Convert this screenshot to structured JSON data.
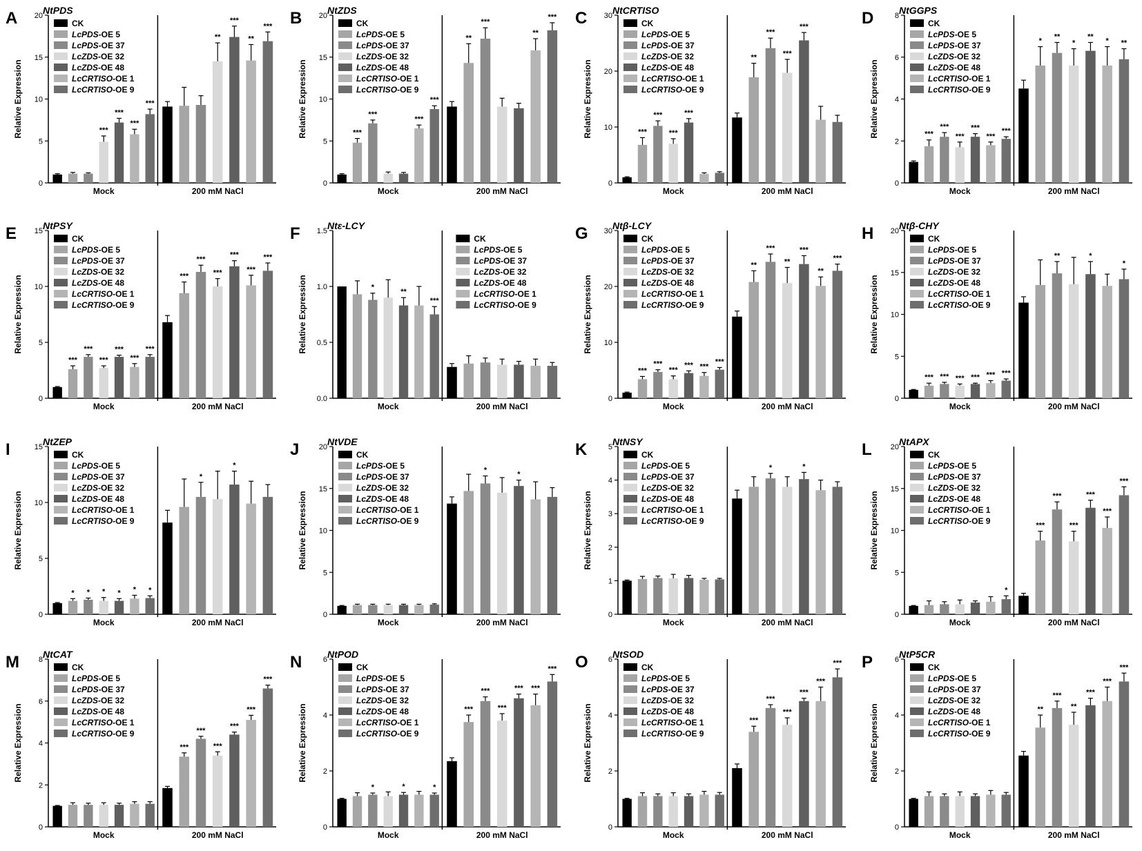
{
  "figure": {
    "group_labels": [
      "Mock",
      "200 mM NaCl"
    ],
    "ylabel": "Relative Expression",
    "legend": [
      {
        "name": "CK",
        "italic": "",
        "suffix": ""
      },
      {
        "name": "LcPDS-OE 5",
        "italic": "LcPDS",
        "suffix": "-OE 5"
      },
      {
        "name": "LcPDS-OE 37",
        "italic": "LcPDS",
        "suffix": "-OE 37"
      },
      {
        "name": "LcZDS-OE 32",
        "italic": "LcZDS",
        "suffix": "-OE 32"
      },
      {
        "name": "LcZDS-OE 48",
        "italic": "LcZDS",
        "suffix": "-OE 48"
      },
      {
        "name": "LcCRTISO-OE 1",
        "italic": "LcCRTISO",
        "suffix": "-OE 1"
      },
      {
        "name": "LcCRTISO-OE 9",
        "italic": "LcCRTISO",
        "suffix": "-OE 9"
      }
    ],
    "colors": [
      "#000000",
      "#a6a6a6",
      "#8a8a8a",
      "#d9d9d9",
      "#5f5f5f",
      "#b5b5b5",
      "#6e6e6e"
    ]
  },
  "chart_data": [
    {
      "letter": "A",
      "title": "NtPDS",
      "type": "bar",
      "ylim": [
        0,
        20
      ],
      "yticks": [
        0,
        5,
        10,
        15,
        20
      ],
      "series_values": {
        "mock": [
          1,
          1.1,
          1.1,
          4.9,
          7.2,
          5.8,
          8.2
        ],
        "salt": [
          9.1,
          9.2,
          9.3,
          14.5,
          17.4,
          14.6,
          16.9
        ]
      },
      "errors": {
        "mock": [
          0.1,
          0.15,
          0.1,
          0.7,
          0.5,
          0.6,
          0.6
        ],
        "salt": [
          0.6,
          2.2,
          1.1,
          2.2,
          1.3,
          1.9,
          1.1
        ]
      },
      "stars": {
        "mock": [
          "",
          "",
          "",
          "***",
          "***",
          "***",
          "***"
        ],
        "salt": [
          "",
          "",
          "",
          "**",
          "***",
          "**",
          "***"
        ]
      }
    },
    {
      "letter": "B",
      "title": "NtZDS",
      "type": "bar",
      "ylim": [
        0,
        20
      ],
      "yticks": [
        0,
        5,
        10,
        15,
        20
      ],
      "series_values": {
        "mock": [
          1,
          4.8,
          7.1,
          1.1,
          1.1,
          6.5,
          8.8
        ],
        "salt": [
          9.1,
          14.3,
          17.2,
          9.1,
          8.9,
          15.8,
          18.2
        ]
      },
      "errors": {
        "mock": [
          0.1,
          0.5,
          0.4,
          0.2,
          0.15,
          0.4,
          0.4
        ],
        "salt": [
          0.6,
          2.3,
          1.3,
          1.0,
          0.6,
          1.4,
          0.9
        ]
      },
      "stars": {
        "mock": [
          "",
          "***",
          "***",
          "",
          "",
          "***",
          "***"
        ],
        "salt": [
          "",
          "**",
          "***",
          "",
          "",
          "**",
          "***"
        ]
      }
    },
    {
      "letter": "C",
      "title": "NtCRTISO",
      "type": "bar",
      "ylim": [
        0,
        30
      ],
      "yticks": [
        0,
        10,
        20,
        30
      ],
      "series_values": {
        "mock": [
          1,
          6.8,
          10.2,
          7.0,
          10.8,
          1.6,
          1.8
        ],
        "salt": [
          11.7,
          18.9,
          24.1,
          19.7,
          25.5,
          11.3,
          10.9
        ]
      },
      "errors": {
        "mock": [
          0.1,
          1.3,
          0.9,
          0.9,
          0.7,
          0.2,
          0.2
        ],
        "salt": [
          0.8,
          2.5,
          1.8,
          2.4,
          1.4,
          2.4,
          1.2
        ]
      },
      "stars": {
        "mock": [
          "",
          "***",
          "***",
          "***",
          "***",
          "",
          ""
        ],
        "salt": [
          "",
          "**",
          "***",
          "***",
          "***",
          "",
          ""
        ]
      }
    },
    {
      "letter": "D",
      "title": "NtGGPS",
      "type": "bar",
      "ylim": [
        0,
        8
      ],
      "yticks": [
        0,
        2,
        4,
        6,
        8
      ],
      "series_values": {
        "mock": [
          1,
          1.75,
          2.2,
          1.7,
          2.2,
          1.8,
          2.1
        ],
        "salt": [
          4.5,
          5.6,
          6.2,
          5.6,
          6.3,
          5.6,
          5.9
        ]
      },
      "errors": {
        "mock": [
          0.05,
          0.3,
          0.2,
          0.25,
          0.15,
          0.15,
          0.1
        ],
        "salt": [
          0.4,
          0.9,
          0.5,
          0.8,
          0.4,
          0.9,
          0.5
        ]
      },
      "stars": {
        "mock": [
          "",
          "***",
          "***",
          "***",
          "***",
          "***",
          "***"
        ],
        "salt": [
          "",
          "*",
          "**",
          "*",
          "**",
          "*",
          "**"
        ]
      }
    },
    {
      "letter": "E",
      "title": "NtPSY",
      "type": "bar",
      "ylim": [
        0,
        15
      ],
      "yticks": [
        0,
        5,
        10,
        15
      ],
      "series_values": {
        "mock": [
          1,
          2.6,
          3.7,
          2.7,
          3.7,
          2.8,
          3.7
        ],
        "salt": [
          6.8,
          9.4,
          11.3,
          10.0,
          11.8,
          10.1,
          11.4
        ]
      },
      "errors": {
        "mock": [
          0.05,
          0.3,
          0.2,
          0.2,
          0.15,
          0.3,
          0.2
        ],
        "salt": [
          0.6,
          1.0,
          0.6,
          0.7,
          0.5,
          0.9,
          0.7
        ]
      },
      "stars": {
        "mock": [
          "",
          "***",
          "***",
          "***",
          "***",
          "***",
          "***"
        ],
        "salt": [
          "",
          "***",
          "***",
          "***",
          "***",
          "***",
          "***"
        ]
      }
    },
    {
      "letter": "F",
      "title": "Ntε-LCY",
      "type": "bar",
      "ylim": [
        0,
        1.5
      ],
      "yticks": [
        0,
        0.5,
        1.0,
        1.5
      ],
      "series_values": {
        "mock": [
          1,
          0.93,
          0.88,
          0.9,
          0.83,
          0.83,
          0.75
        ],
        "salt": [
          0.28,
          0.31,
          0.32,
          0.3,
          0.3,
          0.29,
          0.29
        ]
      },
      "errors": {
        "mock": [
          0,
          0.12,
          0.06,
          0.16,
          0.07,
          0.17,
          0.07
        ],
        "salt": [
          0.03,
          0.07,
          0.04,
          0.05,
          0.03,
          0.06,
          0.03
        ]
      },
      "stars": {
        "mock": [
          "",
          "",
          "*",
          "",
          "**",
          "",
          "***"
        ],
        "salt": [
          "",
          "",
          "",
          "",
          "",
          "",
          ""
        ]
      }
    },
    {
      "letter": "G",
      "title": "Ntβ-LCY",
      "type": "bar",
      "ylim": [
        0,
        30
      ],
      "yticks": [
        0,
        10,
        20,
        30
      ],
      "series_values": {
        "mock": [
          1,
          3.4,
          4.7,
          3.4,
          4.5,
          4.0,
          5.1
        ],
        "salt": [
          14.6,
          20.8,
          24.4,
          20.6,
          24.0,
          20.1,
          22.8
        ]
      },
      "errors": {
        "mock": [
          0.1,
          0.5,
          0.4,
          0.6,
          0.4,
          0.6,
          0.4
        ],
        "salt": [
          1.0,
          2.0,
          1.4,
          2.8,
          1.5,
          1.6,
          1.2
        ]
      },
      "stars": {
        "mock": [
          "",
          "***",
          "***",
          "***",
          "***",
          "***",
          "***"
        ],
        "salt": [
          "",
          "**",
          "***",
          "**",
          "***",
          "**",
          "***"
        ]
      }
    },
    {
      "letter": "H",
      "title": "Ntβ-CHY",
      "type": "bar",
      "ylim": [
        0,
        20
      ],
      "yticks": [
        0,
        5,
        10,
        15,
        20
      ],
      "series_values": {
        "mock": [
          1,
          1.5,
          1.7,
          1.5,
          1.7,
          1.8,
          2.1
        ],
        "salt": [
          11.4,
          13.5,
          14.9,
          13.6,
          14.8,
          13.4,
          14.2
        ]
      },
      "errors": {
        "mock": [
          0.05,
          0.3,
          0.2,
          0.2,
          0.1,
          0.3,
          0.2
        ],
        "salt": [
          0.7,
          3.0,
          1.4,
          3.2,
          1.5,
          1.4,
          1.2
        ]
      },
      "stars": {
        "mock": [
          "",
          "***",
          "***",
          "***",
          "***",
          "***",
          "***"
        ],
        "salt": [
          "",
          "",
          "**",
          "",
          "*",
          "",
          "*"
        ]
      }
    },
    {
      "letter": "I",
      "title": "NtZEP",
      "type": "bar",
      "ylim": [
        0,
        15
      ],
      "yticks": [
        0,
        5,
        10,
        15
      ],
      "series_values": {
        "mock": [
          1,
          1.2,
          1.3,
          1.2,
          1.2,
          1.4,
          1.45
        ],
        "salt": [
          8.2,
          9.6,
          10.5,
          10.3,
          11.6,
          9.9,
          10.5
        ]
      },
      "errors": {
        "mock": [
          0.05,
          0.2,
          0.15,
          0.3,
          0.2,
          0.3,
          0.2
        ],
        "salt": [
          1.1,
          2.5,
          1.3,
          2.5,
          1.2,
          2.0,
          1.1
        ]
      },
      "stars": {
        "mock": [
          "",
          "*",
          "*",
          "*",
          "*",
          "*",
          "*"
        ],
        "salt": [
          "",
          "",
          "*",
          "",
          "*",
          "",
          ""
        ]
      }
    },
    {
      "letter": "J",
      "title": "NtVDE",
      "type": "bar",
      "ylim": [
        0,
        20
      ],
      "yticks": [
        0,
        5,
        10,
        15,
        20
      ],
      "series_values": {
        "mock": [
          1,
          1.1,
          1.1,
          1.1,
          1.1,
          1.1,
          1.15
        ],
        "salt": [
          13.2,
          14.7,
          15.6,
          14.5,
          15.3,
          13.7,
          14.0
        ]
      },
      "errors": {
        "mock": [
          0.05,
          0.1,
          0.1,
          0.1,
          0.1,
          0.1,
          0.1
        ],
        "salt": [
          0.8,
          2.0,
          0.9,
          1.8,
          0.7,
          2.1,
          1.1
        ]
      },
      "stars": {
        "mock": [
          "",
          "",
          "",
          "",
          "",
          "",
          ""
        ],
        "salt": [
          "",
          "",
          "*",
          "",
          "*",
          "",
          ""
        ]
      }
    },
    {
      "letter": "K",
      "title": "NtNSY",
      "type": "bar",
      "ylim": [
        0,
        5
      ],
      "yticks": [
        0,
        1,
        2,
        3,
        4,
        5
      ],
      "series_values": {
        "mock": [
          1,
          1.05,
          1.08,
          1.07,
          1.08,
          1.03,
          1.04
        ],
        "salt": [
          3.45,
          3.8,
          4.05,
          3.8,
          4.03,
          3.7,
          3.8
        ]
      },
      "errors": {
        "mock": [
          0.02,
          0.08,
          0.06,
          0.12,
          0.08,
          0.04,
          0.03
        ],
        "salt": [
          0.25,
          0.3,
          0.15,
          0.3,
          0.2,
          0.3,
          0.15
        ]
      },
      "stars": {
        "mock": [
          "",
          "",
          "",
          "",
          "",
          "",
          ""
        ],
        "salt": [
          "",
          "",
          "*",
          "",
          "*",
          "",
          ""
        ]
      }
    },
    {
      "letter": "L",
      "title": "NtAPX",
      "type": "bar",
      "ylim": [
        0,
        20
      ],
      "yticks": [
        0,
        5,
        10,
        15,
        20
      ],
      "series_values": {
        "mock": [
          1,
          1.1,
          1.2,
          1.2,
          1.4,
          1.5,
          1.8
        ],
        "salt": [
          2.2,
          8.8,
          12.5,
          8.7,
          12.7,
          10.3,
          14.2
        ]
      },
      "errors": {
        "mock": [
          0.05,
          0.5,
          0.3,
          0.5,
          0.2,
          0.6,
          0.4
        ],
        "salt": [
          0.3,
          1.1,
          0.9,
          1.2,
          0.9,
          1.3,
          1.0
        ]
      },
      "stars": {
        "mock": [
          "",
          "",
          "",
          "",
          "",
          "",
          "*"
        ],
        "salt": [
          "",
          "***",
          "***",
          "***",
          "***",
          "***",
          "***"
        ]
      }
    },
    {
      "letter": "M",
      "title": "NtCAT",
      "type": "bar",
      "ylim": [
        0,
        8
      ],
      "yticks": [
        0,
        2,
        4,
        6,
        8
      ],
      "series_values": {
        "mock": [
          1,
          1.05,
          1.05,
          1.05,
          1.05,
          1.1,
          1.1
        ],
        "salt": [
          1.85,
          3.35,
          4.2,
          3.4,
          4.4,
          5.1,
          6.6
        ]
      },
      "errors": {
        "mock": [
          0.02,
          0.1,
          0.08,
          0.1,
          0.08,
          0.1,
          0.1
        ],
        "salt": [
          0.08,
          0.18,
          0.12,
          0.18,
          0.12,
          0.22,
          0.16
        ]
      },
      "stars": {
        "mock": [
          "",
          "",
          "",
          "",
          "",
          "",
          ""
        ],
        "salt": [
          "",
          "***",
          "***",
          "***",
          "***",
          "***",
          "***"
        ]
      }
    },
    {
      "letter": "N",
      "title": "NtPOD",
      "type": "bar",
      "ylim": [
        0,
        6
      ],
      "yticks": [
        0,
        2,
        4,
        6
      ],
      "series_values": {
        "mock": [
          1,
          1.1,
          1.15,
          1.1,
          1.15,
          1.15,
          1.15
        ],
        "salt": [
          2.35,
          3.75,
          4.5,
          3.8,
          4.6,
          4.35,
          5.2
        ]
      },
      "errors": {
        "mock": [
          0.02,
          0.12,
          0.06,
          0.15,
          0.08,
          0.12,
          0.06
        ],
        "salt": [
          0.12,
          0.25,
          0.15,
          0.25,
          0.15,
          0.4,
          0.25
        ]
      },
      "stars": {
        "mock": [
          "",
          "",
          "*",
          "",
          "*",
          "",
          "*"
        ],
        "salt": [
          "",
          "***",
          "***",
          "***",
          "***",
          "***",
          "***"
        ]
      }
    },
    {
      "letter": "O",
      "title": "NtSOD",
      "type": "bar",
      "ylim": [
        0,
        6
      ],
      "yticks": [
        0,
        2,
        4,
        6
      ],
      "series_values": {
        "mock": [
          1,
          1.1,
          1.1,
          1.1,
          1.1,
          1.15,
          1.15
        ],
        "salt": [
          2.1,
          3.4,
          4.25,
          3.65,
          4.5,
          4.5,
          5.35
        ]
      },
      "errors": {
        "mock": [
          0.02,
          0.12,
          0.08,
          0.12,
          0.08,
          0.12,
          0.08
        ],
        "salt": [
          0.15,
          0.2,
          0.12,
          0.25,
          0.1,
          0.5,
          0.3
        ]
      },
      "stars": {
        "mock": [
          "",
          "",
          "",
          "",
          "",
          "",
          ""
        ],
        "salt": [
          "",
          "***",
          "***",
          "***",
          "***",
          "***",
          "***"
        ]
      }
    },
    {
      "letter": "P",
      "title": "NtP5CR",
      "type": "bar",
      "ylim": [
        0,
        6
      ],
      "yticks": [
        0,
        2,
        4,
        6
      ],
      "series_values": {
        "mock": [
          1,
          1.1,
          1.1,
          1.1,
          1.1,
          1.15,
          1.15
        ],
        "salt": [
          2.55,
          3.55,
          4.25,
          3.65,
          4.35,
          4.5,
          5.2
        ]
      },
      "errors": {
        "mock": [
          0.02,
          0.15,
          0.08,
          0.15,
          0.08,
          0.15,
          0.08
        ],
        "salt": [
          0.15,
          0.45,
          0.25,
          0.45,
          0.25,
          0.5,
          0.3
        ]
      },
      "stars": {
        "mock": [
          "",
          "",
          "",
          "",
          "",
          "",
          ""
        ],
        "salt": [
          "",
          "**",
          "***",
          "**",
          "***",
          "***",
          "***"
        ]
      }
    }
  ]
}
